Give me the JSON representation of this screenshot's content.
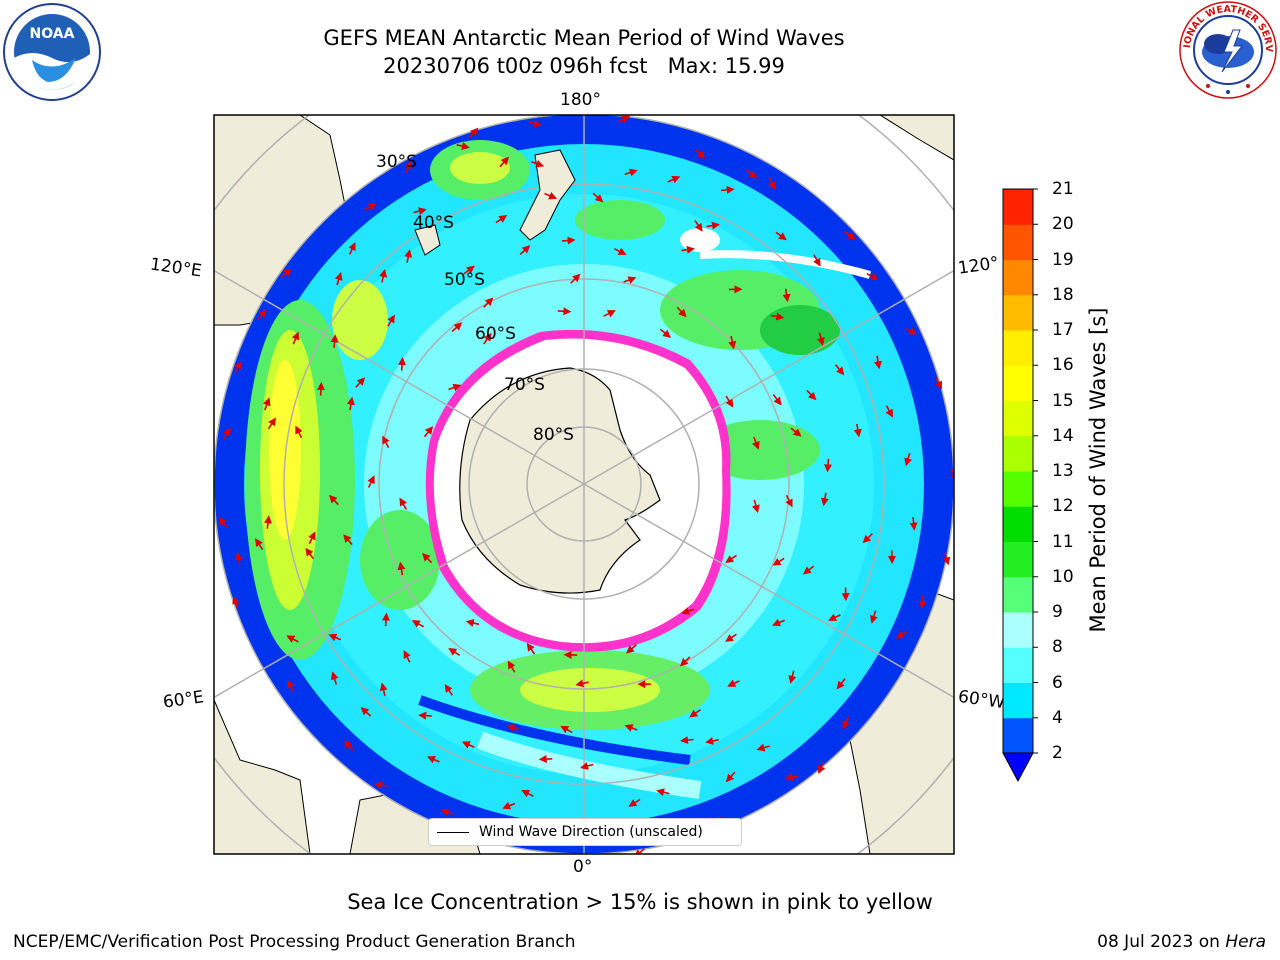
{
  "title": {
    "line1": "GEFS MEAN Antarctic Mean Period of Wind Waves",
    "line2": "20230706 t00z 096h fcst   Max: 15.99"
  },
  "logos": {
    "noaa": "NOAA",
    "noaa_ring": "NATIONAL OCEANIC AND ATMOSPHERIC ADMINISTRATION · U.S. DEPARTMENT OF COMMERCE",
    "nws_ring": "NATIONAL WEATHER SERVICE"
  },
  "map": {
    "longitude_labels": {
      "top": "180°",
      "bottom": "0°",
      "upper_left": "120°E",
      "upper_right": "120°",
      "lower_left": "60°E",
      "lower_right": "60°W"
    },
    "latitude_labels": [
      "30°S",
      "40°S",
      "50°S",
      "60°S",
      "70°S",
      "80°S"
    ],
    "legend_label": "Wind Wave Direction (unscaled)",
    "colors": {
      "land": "#efedda",
      "ice_edge": "#ff33cc",
      "arrows": "#dd0000",
      "grid": "#b0b0b0"
    }
  },
  "colorbar": {
    "label": "Mean Period of Wind Waves [s]",
    "ticks": [
      "2",
      "4",
      "6",
      "8",
      "9",
      "10",
      "11",
      "12",
      "13",
      "14",
      "15",
      "16",
      "17",
      "18",
      "19",
      "20",
      "21"
    ],
    "colors": [
      "#0055ff",
      "#00e8ff",
      "#55ffff",
      "#aaffff",
      "#55ff77",
      "#22ee22",
      "#00dd00",
      "#55ff00",
      "#aaff00",
      "#ddff00",
      "#ffff00",
      "#ffee00",
      "#ffbb00",
      "#ff8800",
      "#ff5500",
      "#ff2200",
      "#ff0000"
    ],
    "under_color": "#0000ff"
  },
  "notes": {
    "ice": "Sea Ice Concentration > 15% is shown in pink to yellow",
    "footer_left": "NCEP/EMC/Verification Post Processing Product Generation Branch",
    "footer_date": "08 Jul 2023 on",
    "footer_host": "Hera"
  }
}
